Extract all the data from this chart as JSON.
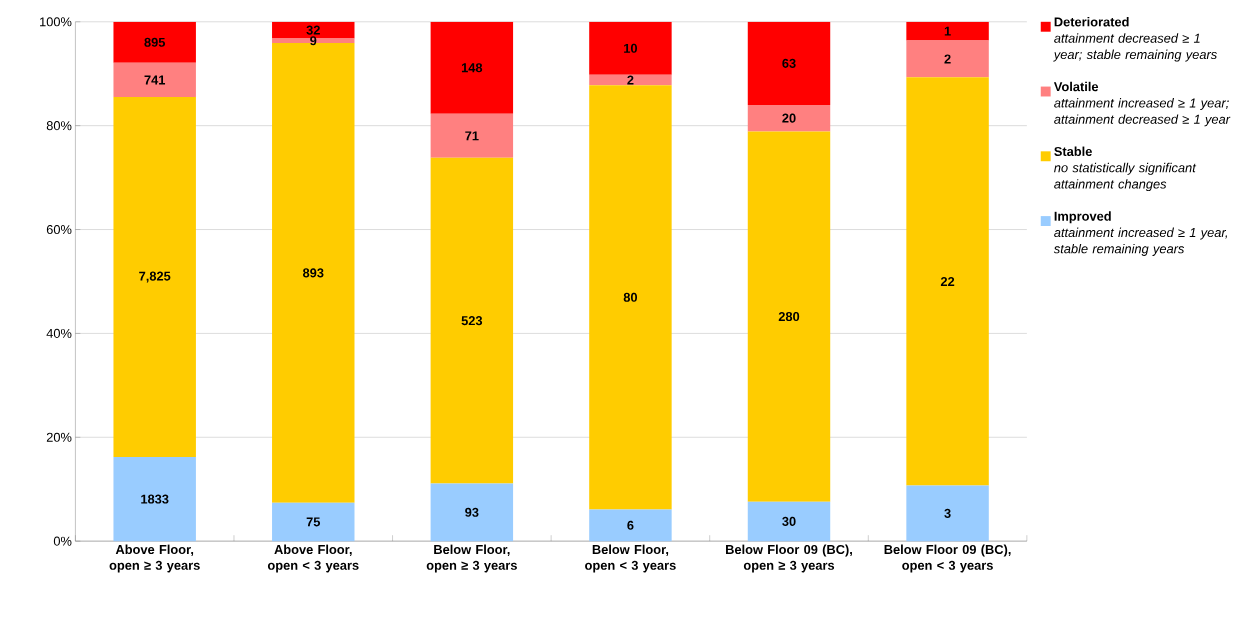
{
  "chart_data": {
    "type": "bar",
    "stacked": true,
    "categories": [
      "Above Floor, open ≥ 3 years",
      "Above Floor, open < 3 years",
      "Below Floor, open ≥ 3 years",
      "Below Floor, open < 3 years",
      "Below Floor 09 (BC), open ≥ 3 years",
      "Below Floor 09 (BC), open < 3 years"
    ],
    "series": [
      {
        "name": "Improved",
        "color": "#99ccff",
        "values": [
          16.2,
          7.4,
          11.1,
          6.1,
          7.6,
          10.7
        ]
      },
      {
        "name": "Stable",
        "color": "#ffcc00",
        "values": [
          69.3,
          88.5,
          62.7,
          81.7,
          71.3,
          78.6
        ]
      },
      {
        "name": "Volatile",
        "color": "#ff8080",
        "values": [
          6.6,
          0.9,
          8.5,
          2.0,
          5.1,
          7.1
        ]
      },
      {
        "name": "Deteriorated",
        "color": "#ff0000",
        "values": [
          7.9,
          3.2,
          17.7,
          10.2,
          16.0,
          3.6
        ]
      }
    ],
    "annotations": [
      "attainment increased ≥ 1 year, stable remaining years",
      "no statistically significant attainment changes",
      "attainment increased ≥ 1 year; attainment decreased ≥ 1 year",
      "attainment decreased ≥ 1 year; stable remaining years",
      "1833",
      "75",
      "93",
      "6",
      "30",
      "3",
      "7,825",
      "893",
      "523",
      "80",
      "280",
      "22",
      "741",
      "9",
      "71",
      "2",
      "20",
      "2",
      "895",
      "32",
      "148",
      "10",
      "63",
      "1"
    ],
    "ylim": [
      0,
      100
    ],
    "yticks": [
      {
        "value": 0,
        "label": "0%"
      },
      {
        "value": 20,
        "label": "20%"
      },
      {
        "value": 40,
        "label": "40%"
      },
      {
        "value": 60,
        "label": "60%"
      },
      {
        "value": 80,
        "label": "80%"
      },
      {
        "value": 100,
        "label": "100%"
      }
    ],
    "grid": "y",
    "legend": "right"
  }
}
